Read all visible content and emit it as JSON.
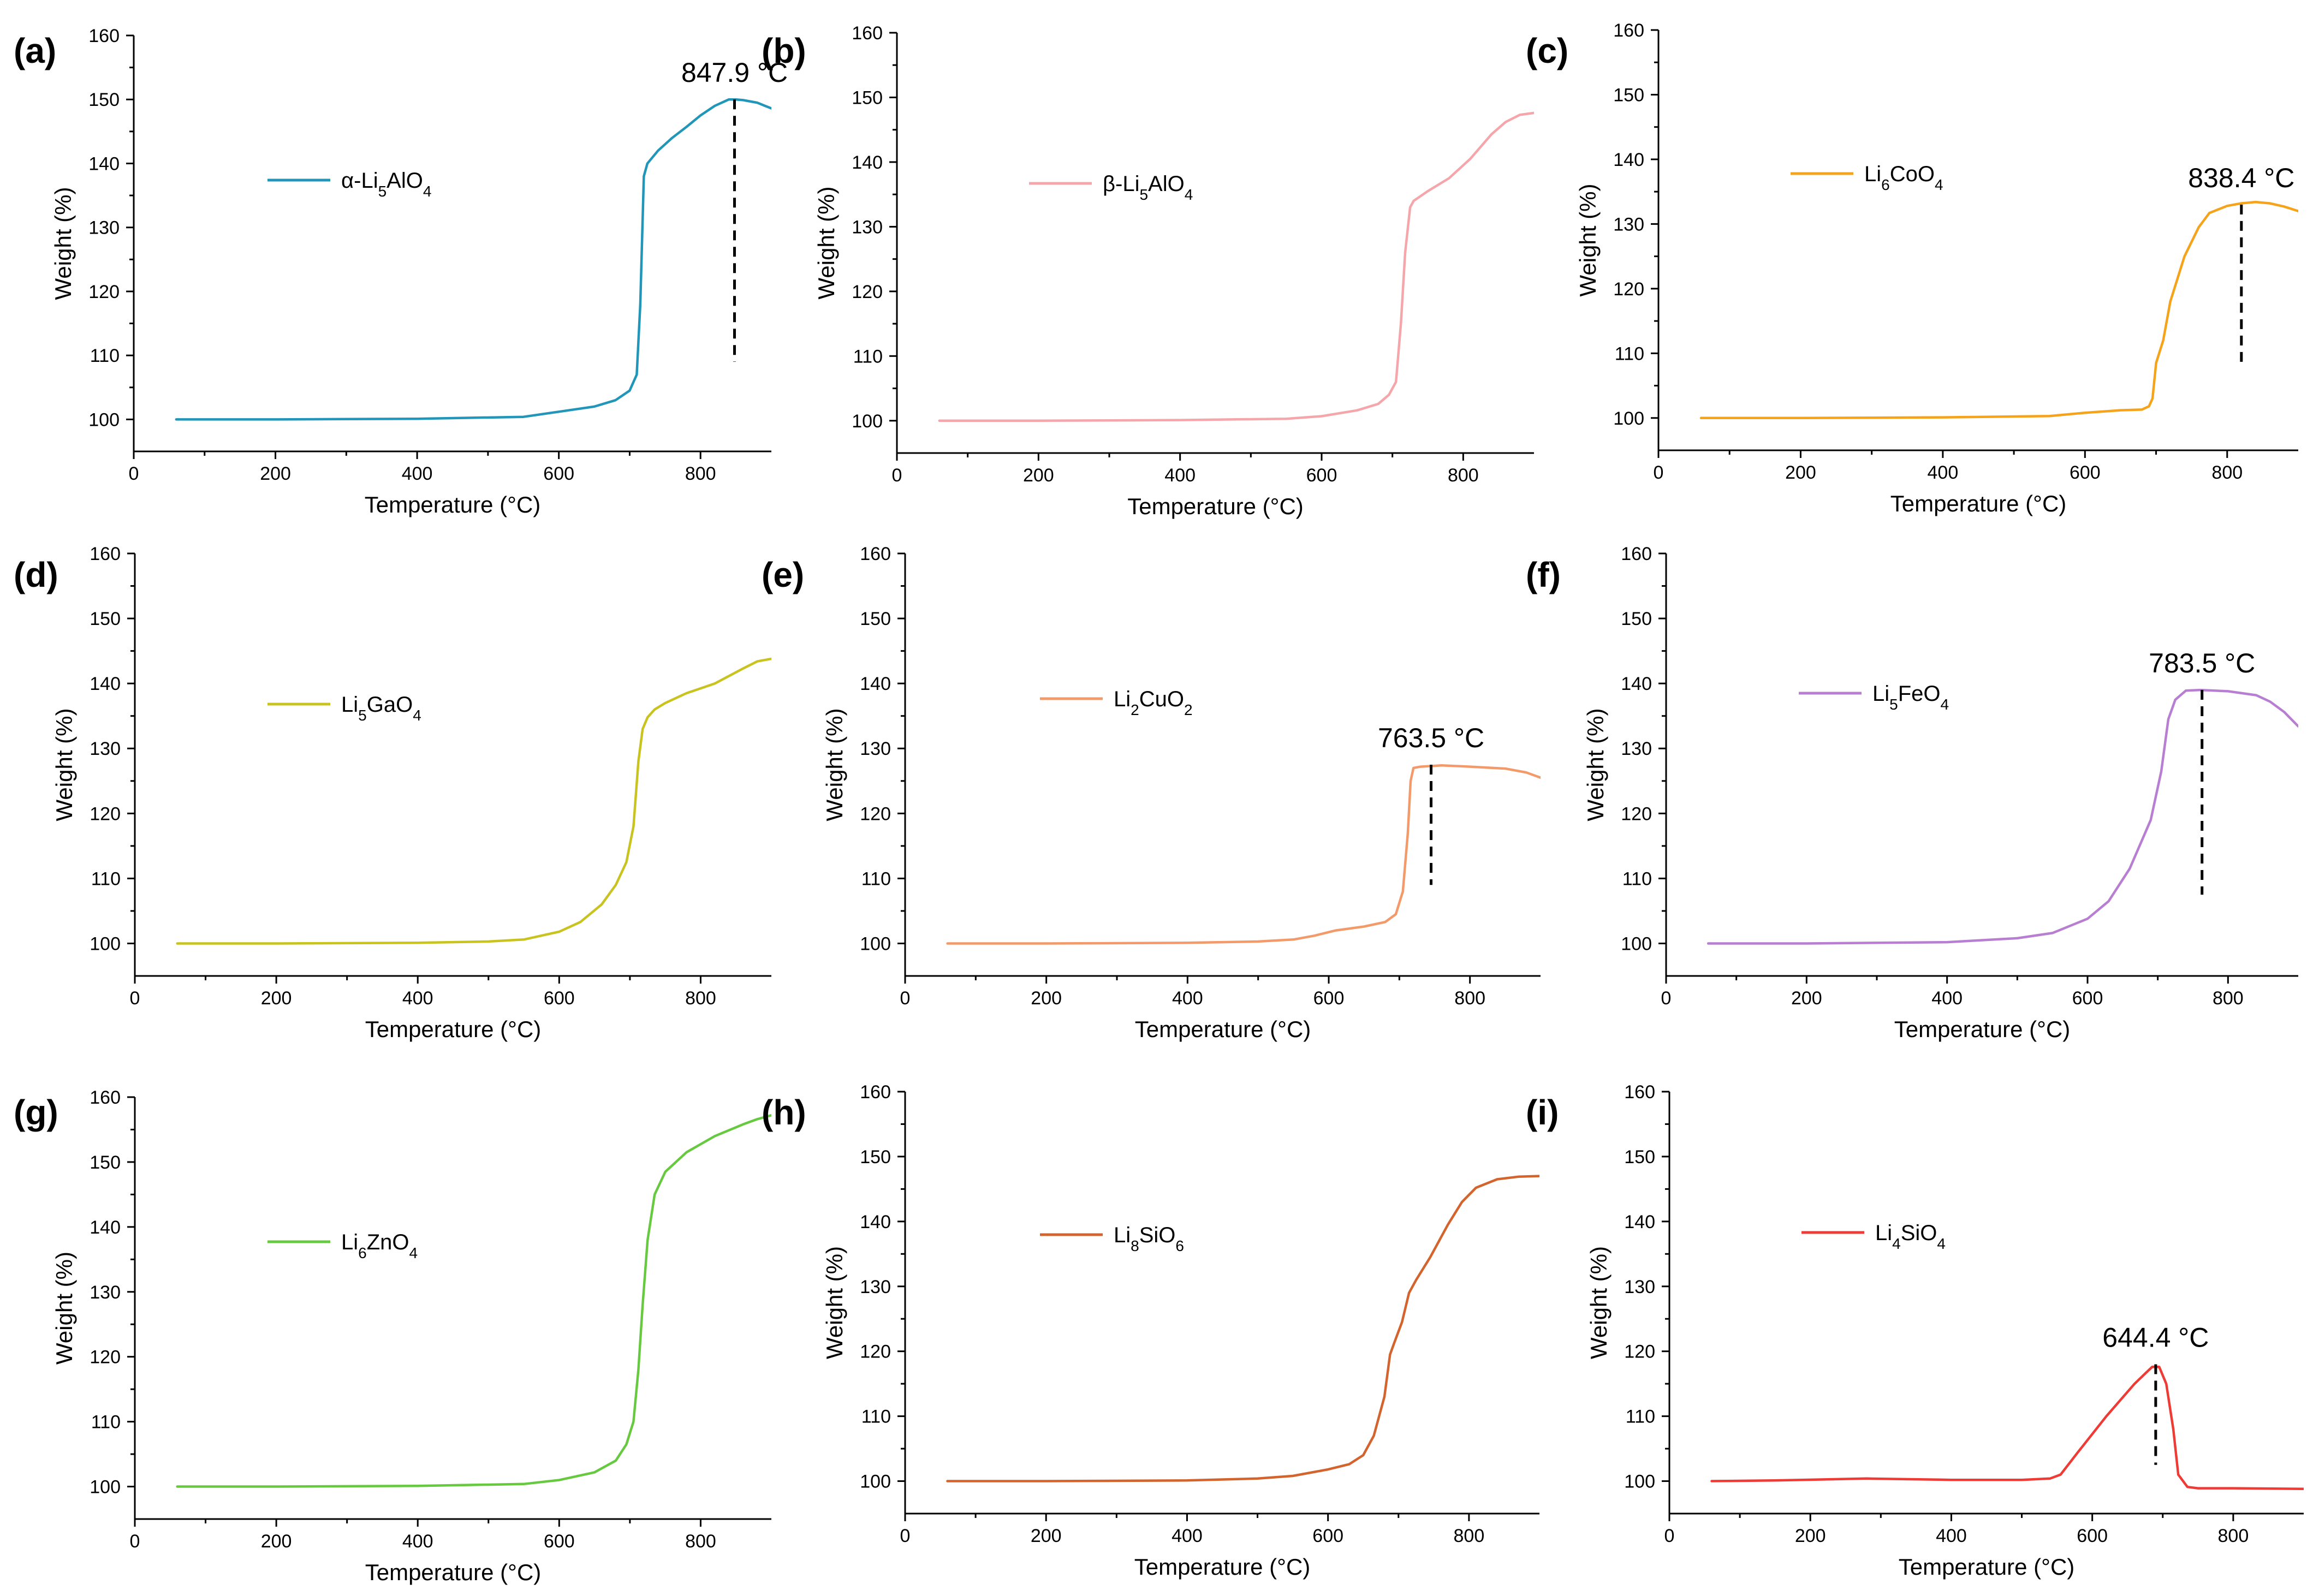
{
  "chart_data": [
    {
      "type": "line",
      "panel": "(a)",
      "xlabel": "Temperature (°C)",
      "ylabel": "Weight (%)",
      "xlim": [
        0,
        900
      ],
      "ylim": [
        95,
        160
      ],
      "xticks": [
        0,
        200,
        400,
        600,
        800
      ],
      "yticks": [
        100,
        110,
        120,
        130,
        140,
        150,
        160
      ],
      "legend": {
        "label": "α-Li",
        "sub1": "5",
        "mid": "AlO",
        "sub2": "4",
        "color": "#2196b8"
      },
      "annotation": {
        "text": "847.9 °C",
        "x": 848,
        "y_top": 150,
        "y_bottom": 109
      },
      "series": [
        {
          "name": "α-Li5AlO4",
          "color": "#2196b8",
          "x": [
            60,
            200,
            400,
            550,
            600,
            650,
            680,
            700,
            710,
            715,
            720,
            725,
            740,
            760,
            780,
            800,
            820,
            840,
            850,
            860,
            880,
            900
          ],
          "y": [
            100,
            100,
            100.1,
            100.4,
            101.2,
            102,
            103,
            104.5,
            107,
            118,
            138,
            140,
            142,
            144,
            145.7,
            147.5,
            149,
            150,
            150,
            149.9,
            149.5,
            148.6
          ]
        }
      ]
    },
    {
      "type": "line",
      "panel": "(b)",
      "xlabel": "Temperature (°C)",
      "ylabel": "Weight (%)",
      "xlim": [
        0,
        900
      ],
      "ylim": [
        95,
        160
      ],
      "xticks": [
        0,
        200,
        400,
        600,
        800
      ],
      "yticks": [
        100,
        110,
        120,
        130,
        140,
        150,
        160
      ],
      "legend": {
        "label": "β-Li",
        "sub1": "5",
        "mid": "AlO",
        "sub2": "4",
        "color": "#f4a6ab"
      },
      "annotation": null,
      "series": [
        {
          "name": "β-Li5AlO4",
          "color": "#f4a6ab",
          "x": [
            60,
            200,
            400,
            550,
            600,
            650,
            680,
            695,
            705,
            712,
            718,
            725,
            730,
            750,
            780,
            810,
            840,
            860,
            880,
            900
          ],
          "y": [
            100,
            100,
            100.1,
            100.3,
            100.7,
            101.6,
            102.6,
            104,
            106,
            115,
            126,
            133,
            134,
            135.5,
            137.5,
            140.5,
            144.3,
            146.2,
            147.3,
            147.6
          ]
        }
      ]
    },
    {
      "type": "line",
      "panel": "(c)",
      "xlabel": "Temperature (°C)",
      "ylabel": "Weight (%)",
      "xlim": [
        0,
        900
      ],
      "ylim": [
        95,
        160
      ],
      "xticks": [
        0,
        200,
        400,
        600,
        800
      ],
      "yticks": [
        100,
        110,
        120,
        130,
        140,
        150,
        160
      ],
      "legend": {
        "label": "Li",
        "sub1": "6",
        "mid": "CoO",
        "sub2": "4",
        "color": "#f5a31a"
      },
      "annotation": {
        "text": "838.4 °C",
        "x": 820,
        "y_top": 133,
        "y_bottom": 108
      },
      "series": [
        {
          "name": "Li6CoO4",
          "color": "#f5a31a",
          "x": [
            60,
            200,
            400,
            550,
            600,
            650,
            680,
            690,
            695,
            700,
            710,
            720,
            740,
            760,
            775,
            800,
            820,
            840,
            860,
            880,
            900
          ],
          "y": [
            100,
            100,
            100.1,
            100.3,
            100.8,
            101.2,
            101.3,
            101.8,
            103,
            108.5,
            112,
            118,
            125,
            129.5,
            131.7,
            132.8,
            133.2,
            133.4,
            133.2,
            132.7,
            132
          ]
        }
      ]
    },
    {
      "type": "line",
      "panel": "(d)",
      "xlabel": "Temperature (°C)",
      "ylabel": "Weight (%)",
      "xlim": [
        0,
        900
      ],
      "ylim": [
        95,
        160
      ],
      "xticks": [
        0,
        200,
        400,
        600,
        800
      ],
      "yticks": [
        100,
        110,
        120,
        130,
        140,
        150,
        160
      ],
      "legend": {
        "label": "Li",
        "sub1": "5",
        "mid": "GaO",
        "sub2": "4",
        "color": "#c9c320"
      },
      "annotation": null,
      "series": [
        {
          "name": "Li5GaO4",
          "color": "#c9c320",
          "x": [
            60,
            200,
            400,
            500,
            550,
            600,
            630,
            660,
            680,
            695,
            705,
            712,
            718,
            725,
            735,
            750,
            780,
            820,
            860,
            880,
            900
          ],
          "y": [
            100,
            100,
            100.1,
            100.3,
            100.6,
            101.8,
            103.3,
            106,
            109,
            112.5,
            118,
            128,
            133,
            134.8,
            136,
            137,
            138.5,
            140,
            142.3,
            143.4,
            143.8
          ]
        }
      ]
    },
    {
      "type": "line",
      "panel": "(e)",
      "xlabel": "Temperature (°C)",
      "ylabel": "Weight (%)",
      "xlim": [
        0,
        900
      ],
      "ylim": [
        95,
        160
      ],
      "xticks": [
        0,
        200,
        400,
        600,
        800
      ],
      "yticks": [
        100,
        110,
        120,
        130,
        140,
        150,
        160
      ],
      "legend": {
        "label": "Li",
        "sub1": "2",
        "mid": "CuO",
        "sub2": "2",
        "color": "#f39a6b"
      },
      "annotation": {
        "text": "763.5 °C",
        "x": 745,
        "y_top": 127.5,
        "y_bottom": 109
      },
      "series": [
        {
          "name": "Li2CuO2",
          "color": "#f39a6b",
          "x": [
            60,
            200,
            400,
            500,
            550,
            580,
            610,
            650,
            680,
            695,
            705,
            712,
            716,
            720,
            730,
            760,
            800,
            850,
            880,
            900
          ],
          "y": [
            100,
            100,
            100.1,
            100.3,
            100.6,
            101.2,
            102,
            102.6,
            103.3,
            104.5,
            108,
            117,
            125,
            127,
            127.2,
            127.4,
            127.2,
            126.9,
            126.3,
            125.5
          ]
        }
      ]
    },
    {
      "type": "line",
      "panel": "(f)",
      "xlabel": "Temperature (°C)",
      "ylabel": "Weight (%)",
      "xlim": [
        0,
        900
      ],
      "ylim": [
        95,
        160
      ],
      "xticks": [
        0,
        200,
        400,
        600,
        800
      ],
      "yticks": [
        100,
        110,
        120,
        130,
        140,
        150,
        160
      ],
      "legend": {
        "label": "Li",
        "sub1": "5",
        "mid": "FeO",
        "sub2": "4",
        "color": "#b77ed1"
      },
      "annotation": {
        "text": "783.5 °C",
        "x": 763,
        "y_top": 139,
        "y_bottom": 107.5
      },
      "series": [
        {
          "name": "Li5FeO4",
          "color": "#b77ed1",
          "x": [
            60,
            200,
            400,
            500,
            550,
            600,
            630,
            660,
            690,
            705,
            715,
            725,
            740,
            760,
            800,
            840,
            860,
            880,
            890,
            900
          ],
          "y": [
            100,
            100,
            100.2,
            100.8,
            101.6,
            103.8,
            106.5,
            111.5,
            119,
            126.5,
            134.5,
            137.5,
            138.9,
            139,
            138.8,
            138.2,
            137.2,
            135.6,
            134.5,
            133.4
          ]
        }
      ]
    },
    {
      "type": "line",
      "panel": "(g)",
      "xlabel": "Temperature (°C)",
      "ylabel": "Weight (%)",
      "xlim": [
        0,
        900
      ],
      "ylim": [
        95,
        160
      ],
      "xticks": [
        0,
        200,
        400,
        600,
        800
      ],
      "yticks": [
        100,
        110,
        120,
        130,
        140,
        150,
        160
      ],
      "legend": {
        "label": "Li",
        "sub1": "6",
        "mid": "ZnO",
        "sub2": "4",
        "color": "#66c940"
      },
      "annotation": null,
      "series": [
        {
          "name": "Li6ZnO4",
          "color": "#66c940",
          "x": [
            60,
            200,
            400,
            550,
            600,
            650,
            680,
            695,
            705,
            712,
            718,
            725,
            735,
            750,
            780,
            820,
            860,
            880,
            900
          ],
          "y": [
            100,
            100,
            100.1,
            100.4,
            101,
            102.2,
            104,
            106.5,
            110,
            118,
            128,
            138,
            145,
            148.5,
            151.5,
            154,
            155.8,
            156.6,
            157.2
          ]
        }
      ]
    },
    {
      "type": "line",
      "panel": "(h)",
      "xlabel": "Temperature (°C)",
      "ylabel": "Weight (%)",
      "xlim": [
        0,
        900
      ],
      "ylim": [
        95,
        160
      ],
      "xticks": [
        0,
        200,
        400,
        600,
        800
      ],
      "yticks": [
        100,
        110,
        120,
        130,
        140,
        150,
        160
      ],
      "legend": {
        "label": "Li",
        "sub1": "8",
        "mid": "SiO",
        "sub2": "6",
        "color": "#d3642e"
      },
      "annotation": null,
      "series": [
        {
          "name": "Li8SiO6",
          "color": "#d3642e",
          "x": [
            60,
            200,
            400,
            500,
            550,
            600,
            630,
            650,
            665,
            680,
            688,
            693,
            705,
            715,
            725,
            745,
            770,
            790,
            810,
            840,
            870,
            900
          ],
          "y": [
            100,
            100,
            100.1,
            100.4,
            100.8,
            101.8,
            102.6,
            104,
            107,
            113,
            119.5,
            121,
            124.5,
            129,
            131,
            134.5,
            139.5,
            143,
            145.2,
            146.5,
            146.9,
            147
          ]
        }
      ]
    },
    {
      "type": "line",
      "panel": "(i)",
      "xlabel": "Temperature (°C)",
      "ylabel": "Weight (%)",
      "xlim": [
        0,
        900
      ],
      "ylim": [
        95,
        160
      ],
      "xticks": [
        0,
        200,
        400,
        600,
        800
      ],
      "yticks": [
        100,
        110,
        120,
        130,
        140,
        150,
        160
      ],
      "legend": {
        "label": "Li",
        "sub1": "4",
        "mid": "SiO",
        "sub2": "4",
        "color": "#ee3b36"
      },
      "annotation": {
        "text": "644.4 °C",
        "x": 690,
        "y_top": 118,
        "y_bottom": 102.5
      },
      "series": [
        {
          "name": "Li4SiO4",
          "color": "#ee3b36",
          "x": [
            60,
            150,
            280,
            400,
            500,
            540,
            555,
            580,
            620,
            660,
            685,
            695,
            705,
            715,
            722,
            735,
            750,
            800,
            900
          ],
          "y": [
            100,
            100.1,
            100.4,
            100.2,
            100.2,
            100.4,
            101,
            104.5,
            110,
            115,
            117.6,
            117.6,
            115,
            108,
            101,
            99.1,
            98.9,
            98.9,
            98.8
          ]
        }
      ]
    }
  ]
}
